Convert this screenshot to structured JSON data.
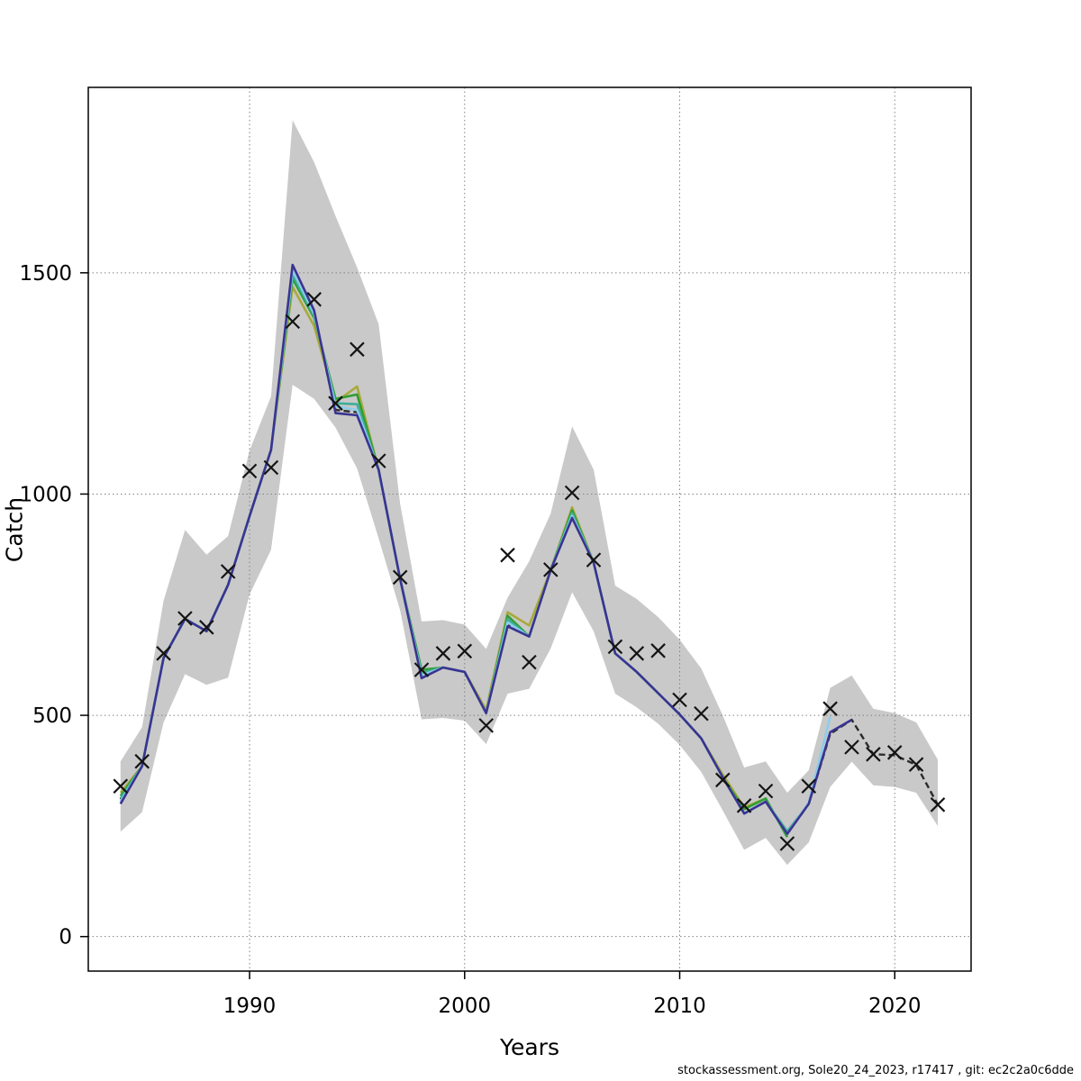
{
  "figure": {
    "xlabel": "Years",
    "ylabel": "Catch",
    "footer": "stockassessment.org, Sole20_24_2023, r17417 , git: ec2c2a0c6dde"
  },
  "chart_data": {
    "type": "line",
    "title": "",
    "xlabel": "Years",
    "ylabel": "Catch",
    "xlim": [
      1982.5,
      2023.55
    ],
    "ylim": [
      -78,
      1919
    ],
    "x_ticks": [
      1990,
      2000,
      2010,
      2020
    ],
    "y_ticks": [
      0,
      500,
      1000,
      1500
    ],
    "grid": "dotted",
    "grid_color": "#828282",
    "x": [
      1984,
      1985,
      1986,
      1987,
      1988,
      1989,
      1990,
      1991,
      1992,
      1993,
      1994,
      1995,
      1996,
      1997,
      1998,
      1999,
      2000,
      2001,
      2002,
      2003,
      2004,
      2005,
      2006,
      2007,
      2008,
      2009,
      2010,
      2011,
      2012,
      2013,
      2014,
      2015,
      2016,
      2017,
      2018,
      2019,
      2020,
      2021,
      2022
    ],
    "band": {
      "label": "confidence-band",
      "color": "#c9c9c9",
      "start_year": 1984,
      "lower": [
        237,
        281,
        484,
        593,
        569,
        585,
        773,
        874,
        1247,
        1215,
        1150,
        1058,
        900,
        737,
        491,
        494,
        488,
        435,
        549,
        560,
        651,
        778,
        690,
        549,
        518,
        481,
        433,
        372,
        285,
        196,
        223,
        162,
        213,
        338,
        395,
        342,
        338,
        325,
        250
      ],
      "upper": [
        396,
        473,
        759,
        919,
        863,
        905,
        1098,
        1221,
        1845,
        1750,
        1628,
        1512,
        1384,
        978,
        712,
        715,
        705,
        650,
        766,
        848,
        956,
        1153,
        1055,
        793,
        763,
        722,
        671,
        606,
        500,
        382,
        396,
        325,
        376,
        562,
        590,
        515,
        505,
        484,
        400
      ]
    },
    "series": [
      {
        "name": "base-run-dashed",
        "color": "#2b2b2b",
        "style": "dashed",
        "width": 2.4,
        "start_year": 1984,
        "values": [
          310,
          385,
          630,
          718,
          690,
          795,
          950,
          1100,
          1500,
          1400,
          1190,
          1185,
          1055,
          808,
          588,
          608,
          598,
          505,
          705,
          678,
          828,
          950,
          845,
          640,
          598,
          550,
          502,
          448,
          360,
          278,
          305,
          232,
          300,
          458,
          490,
          412,
          410,
          388,
          298
        ]
      },
      {
        "name": "retro-peel-2014",
        "color": "#a9a93a",
        "style": "solid",
        "width": 2.6,
        "start_year": 1984,
        "values": [
          325,
          385,
          630,
          718,
          690,
          795,
          950,
          1100,
          1468,
          1380,
          1208,
          1243,
          1055,
          808,
          600,
          608,
          598,
          512,
          733,
          703,
          828,
          970,
          845,
          640,
          598,
          550,
          502,
          448,
          366,
          292,
          312
        ]
      },
      {
        "name": "retro-peel-2015",
        "color": "#2f9e33",
        "style": "solid",
        "width": 2.6,
        "start_year": 1984,
        "values": [
          318,
          385,
          630,
          718,
          690,
          795,
          950,
          1100,
          1487,
          1398,
          1215,
          1225,
          1055,
          808,
          603,
          608,
          598,
          505,
          725,
          678,
          828,
          963,
          845,
          640,
          598,
          550,
          502,
          448,
          360,
          288,
          312,
          225
        ]
      },
      {
        "name": "retro-peel-2016",
        "color": "#3fae99",
        "style": "solid",
        "width": 2.6,
        "start_year": 1984,
        "values": [
          312,
          385,
          630,
          718,
          690,
          795,
          950,
          1100,
          1496,
          1403,
          1205,
          1203,
          1055,
          808,
          596,
          608,
          598,
          505,
          717,
          678,
          828,
          957,
          845,
          640,
          598,
          550,
          502,
          448,
          360,
          278,
          305,
          238,
          300
        ]
      },
      {
        "name": "retro-peel-2017",
        "color": "#8ccdea",
        "style": "solid",
        "width": 2.6,
        "start_year": 1984,
        "values": [
          305,
          385,
          630,
          718,
          690,
          795,
          950,
          1100,
          1506,
          1408,
          1198,
          1190,
          1055,
          808,
          590,
          608,
          598,
          505,
          710,
          678,
          828,
          951,
          845,
          640,
          598,
          550,
          502,
          448,
          360,
          278,
          305,
          232,
          303,
          497
        ]
      },
      {
        "name": "retro-peel-2018",
        "color": "#3a3391",
        "style": "solid",
        "width": 2.6,
        "start_year": 1984,
        "values": [
          300,
          385,
          630,
          718,
          690,
          795,
          950,
          1100,
          1518,
          1415,
          1183,
          1178,
          1055,
          808,
          584,
          608,
          598,
          505,
          701,
          678,
          828,
          946,
          845,
          640,
          598,
          550,
          502,
          448,
          360,
          278,
          305,
          232,
          300,
          462,
          490
        ]
      }
    ],
    "observations": {
      "name": "observed-catch",
      "marker": "x",
      "color": "#141414",
      "start_year": 1984,
      "values": [
        340,
        396,
        640,
        719,
        699,
        825,
        1052,
        1060,
        1390,
        1440,
        1205,
        1327,
        1075,
        812,
        603,
        640,
        645,
        477,
        862,
        620,
        829,
        1003,
        851,
        655,
        640,
        646,
        535,
        504,
        354,
        296,
        329,
        210,
        340,
        515,
        428,
        412,
        416,
        389,
        298
      ]
    },
    "legend": null
  }
}
